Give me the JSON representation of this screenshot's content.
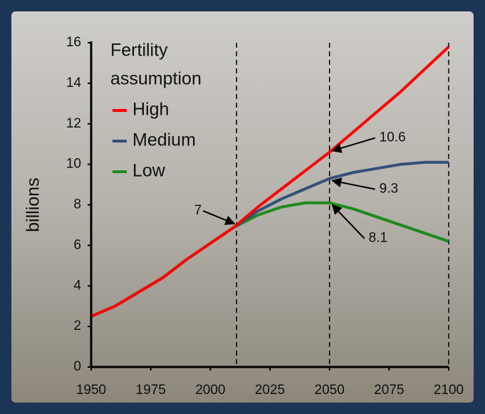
{
  "chart_data": {
    "type": "line",
    "y_label": "billions",
    "legend_title": [
      "Fertility",
      "assumption"
    ],
    "x": [
      1950,
      1960,
      1970,
      1980,
      1990,
      2000,
      2010,
      2020,
      2030,
      2040,
      2050,
      2060,
      2070,
      2080,
      2090,
      2100
    ],
    "series": [
      {
        "name": "High",
        "color": "#ff0000",
        "values": [
          2.5,
          3.0,
          3.7,
          4.4,
          5.3,
          6.1,
          6.9,
          7.9,
          8.8,
          9.7,
          10.6,
          11.6,
          12.6,
          13.6,
          14.7,
          15.8
        ]
      },
      {
        "name": "Medium",
        "color": "#34507a",
        "values": [
          2.5,
          3.0,
          3.7,
          4.4,
          5.3,
          6.1,
          6.9,
          7.7,
          8.3,
          8.8,
          9.3,
          9.6,
          9.8,
          10.0,
          10.1,
          10.1
        ]
      },
      {
        "name": "Low",
        "color": "#1e8a1e",
        "values": [
          2.5,
          3.0,
          3.7,
          4.4,
          5.3,
          6.1,
          6.9,
          7.5,
          7.9,
          8.1,
          8.1,
          7.8,
          7.4,
          7.0,
          6.6,
          6.2
        ]
      }
    ],
    "xlim": [
      1950,
      2100
    ],
    "xticks": [
      1950,
      1975,
      2000,
      2025,
      2050,
      2075,
      2100
    ],
    "ylim": [
      0,
      16
    ],
    "yticks": [
      0,
      2,
      4,
      6,
      8,
      10,
      12,
      14,
      16
    ],
    "vlines": [
      2011,
      2050,
      2100
    ],
    "annotations": [
      {
        "x": 2011,
        "y": 7
      },
      {
        "x": 2050,
        "y": 10.6
      },
      {
        "x": 2050,
        "y": 9.3
      },
      {
        "x": 2050,
        "y": 8.1
      }
    ]
  }
}
